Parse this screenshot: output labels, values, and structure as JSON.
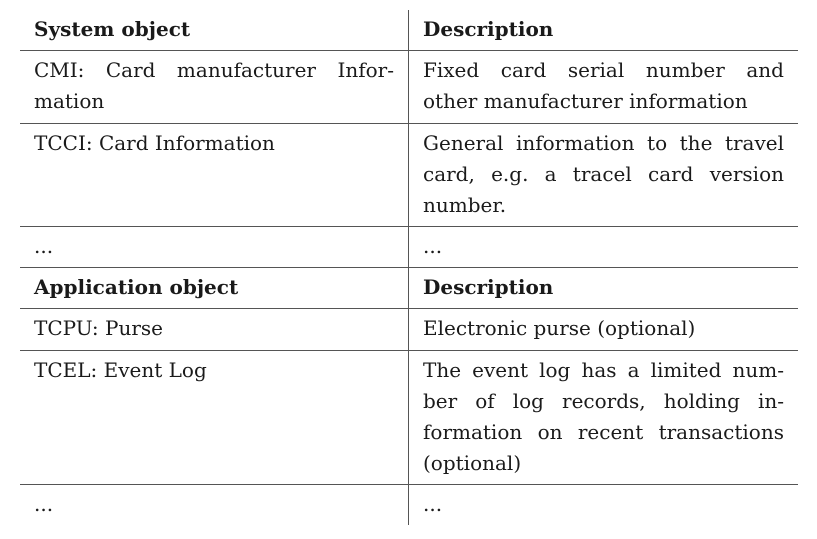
{
  "section1": {
    "header_left": "System object",
    "header_right": "Description",
    "rows": [
      {
        "left_lines": [
          "CMI: Card manufacturer Infor-",
          "mation"
        ],
        "right_lines": [
          "Fixed card serial number and",
          "other manufacturer information"
        ]
      },
      {
        "left_lines": [
          "TCCI: Card Information"
        ],
        "right_lines": [
          "General information to the travel",
          "card, e.g.  a tracel card version",
          "number."
        ]
      },
      {
        "left_lines": [
          "..."
        ],
        "right_lines": [
          "..."
        ]
      }
    ]
  },
  "section2": {
    "header_left": "Application object",
    "header_right": "Description",
    "rows": [
      {
        "left_lines": [
          "TCPU: Purse"
        ],
        "right_lines": [
          "Electronic purse (optional)"
        ]
      },
      {
        "left_lines": [
          "TCEL: Event Log"
        ],
        "right_lines": [
          "The event log has a limited num-",
          "ber of log records, holding in-",
          "formation on recent transactions",
          "(optional)"
        ]
      },
      {
        "left_lines": [
          "..."
        ],
        "right_lines": [
          "..."
        ]
      }
    ]
  }
}
